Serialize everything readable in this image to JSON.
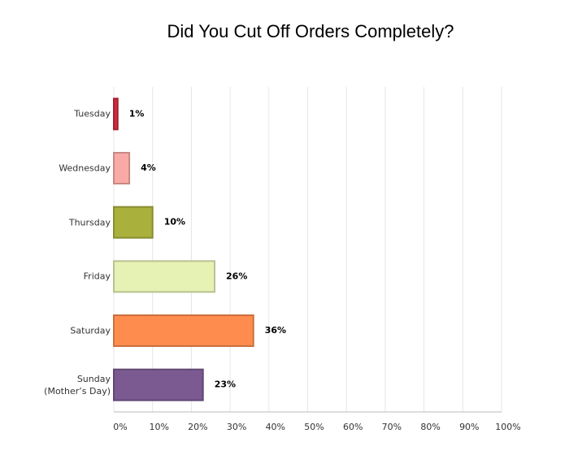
{
  "chart_data": {
    "type": "hbar",
    "title": "Did You Cut Off Orders Completely?",
    "categories": [
      "Tuesday",
      "Wednesday",
      "Thursday",
      "Friday",
      "Saturday",
      "Sunday (Mother’s Day)"
    ],
    "values": [
      1,
      4,
      10,
      26,
      36,
      23
    ],
    "value_labels": [
      "1%",
      "4%",
      "10%",
      "26%",
      "36%",
      "23%"
    ],
    "colors": [
      "#d0293c",
      "#f9aaa6",
      "#aab03c",
      "#e6f2b4",
      "#ff8c4f",
      "#7b5a91"
    ],
    "xlim": [
      0,
      100
    ],
    "xticks": [
      {
        "value": 0,
        "label": "0%"
      },
      {
        "value": 10,
        "label": "10%"
      },
      {
        "value": 20,
        "label": "20%"
      },
      {
        "value": 30,
        "label": "30%"
      },
      {
        "value": 40,
        "label": "40%"
      },
      {
        "value": 50,
        "label": "50%"
      },
      {
        "value": 60,
        "label": "60%"
      },
      {
        "value": 70,
        "label": "70%"
      },
      {
        "value": 80,
        "label": "80%"
      },
      {
        "value": 90,
        "label": "90%"
      },
      {
        "value": 100,
        "label": "100%"
      }
    ],
    "grid": true
  }
}
